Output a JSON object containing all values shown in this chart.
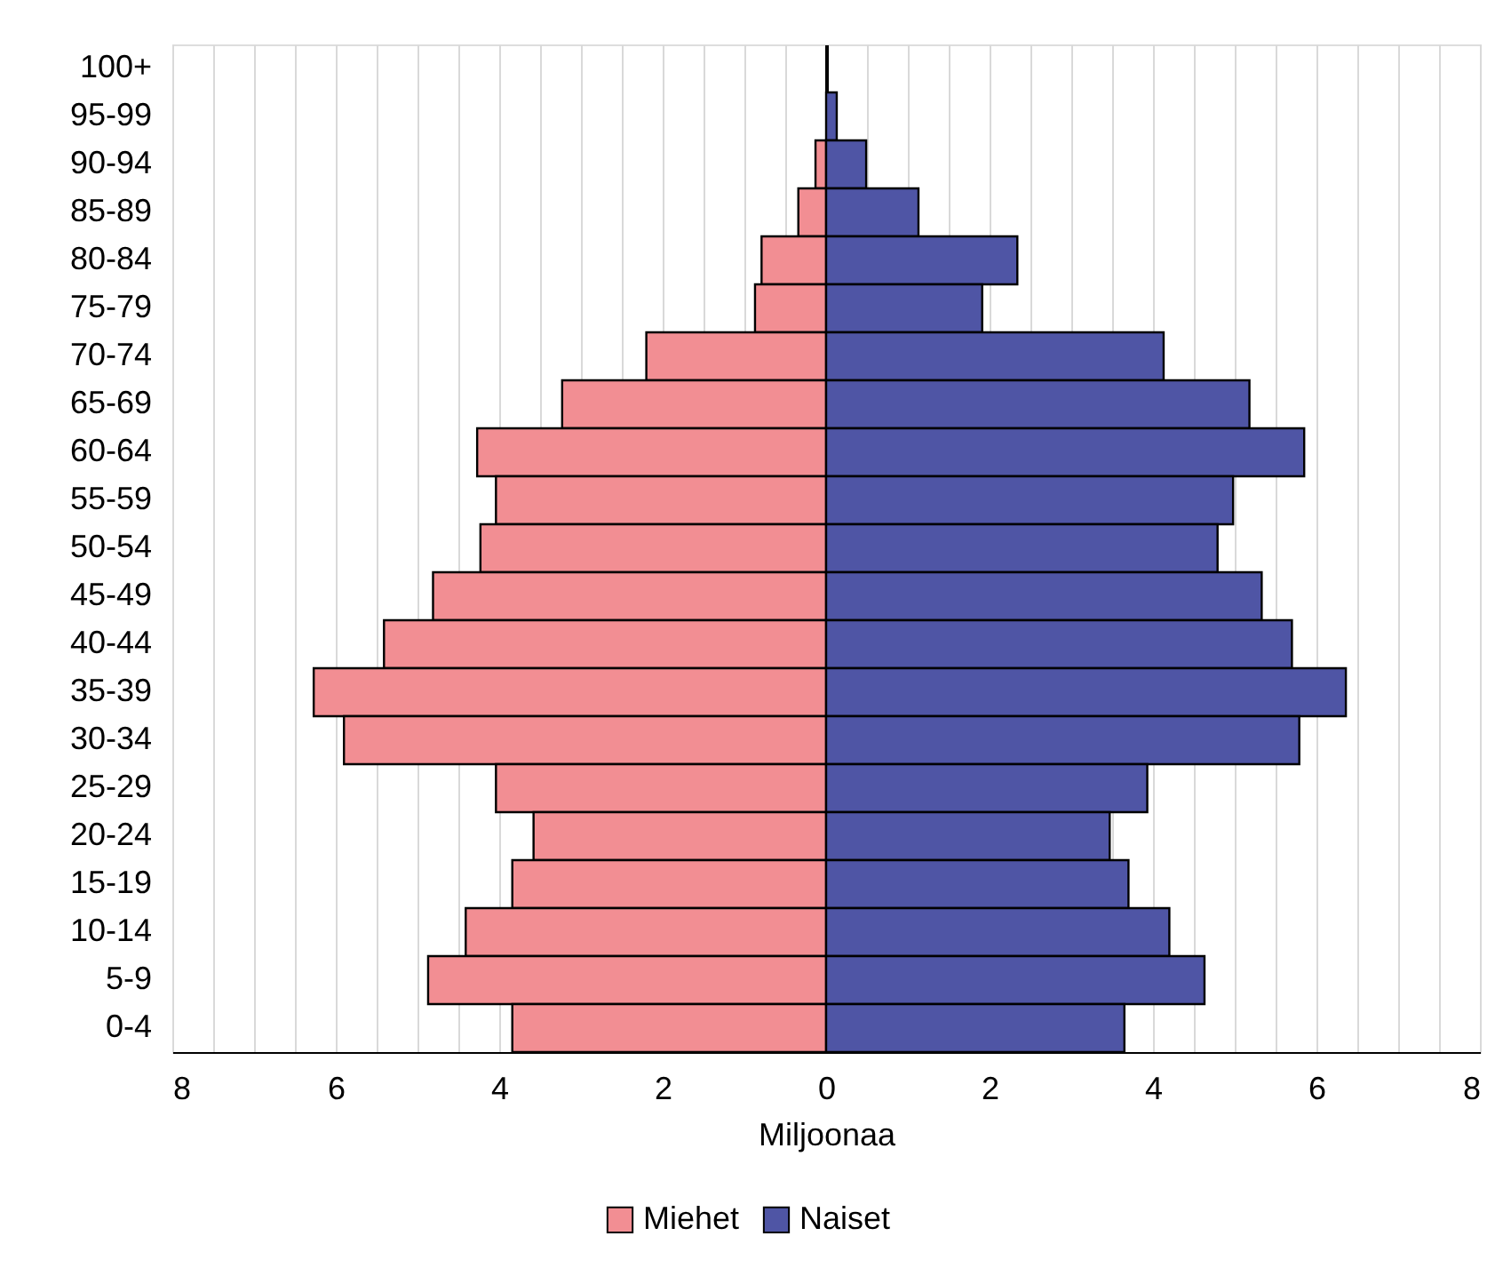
{
  "chart_data": {
    "type": "bar",
    "orientation": "horizontal",
    "xlabel": "Miljoonaa",
    "categories": [
      "100+",
      "95-99",
      "90-94",
      "85-89",
      "80-84",
      "75-79",
      "70-74",
      "65-69",
      "60-64",
      "55-59",
      "50-54",
      "45-49",
      "40-44",
      "35-39",
      "30-34",
      "25-29",
      "20-24",
      "15-19",
      "10-14",
      "5-9",
      "0-4"
    ],
    "series": [
      {
        "name": "Miehet",
        "color": "#f28e93",
        "values": [
          null,
          null,
          -0.13,
          -0.34,
          -0.79,
          -0.87,
          -2.2,
          -3.23,
          -4.27,
          -4.04,
          -4.23,
          -4.81,
          -5.41,
          -6.27,
          -5.9,
          -4.04,
          -3.58,
          -3.84,
          -4.41,
          -4.87,
          -3.84
        ]
      },
      {
        "name": "Naiset",
        "color": "#4f55a5",
        "values": [
          null,
          0.13,
          0.49,
          1.13,
          2.34,
          1.91,
          4.13,
          5.18,
          5.85,
          4.98,
          4.79,
          5.33,
          5.7,
          6.36,
          5.79,
          3.93,
          3.47,
          3.7,
          4.2,
          4.63,
          3.65
        ]
      }
    ],
    "xlim": [
      -8,
      8
    ],
    "xticks": [
      {
        "value": -8,
        "label": "8"
      },
      {
        "value": -7.5,
        "label": null
      },
      {
        "value": -7,
        "label": null
      },
      {
        "value": -6.5,
        "label": null
      },
      {
        "value": -6,
        "label": "6"
      },
      {
        "value": -5.5,
        "label": null
      },
      {
        "value": -5,
        "label": null
      },
      {
        "value": -4.5,
        "label": null
      },
      {
        "value": -4,
        "label": "4"
      },
      {
        "value": -3.5,
        "label": null
      },
      {
        "value": -3,
        "label": null
      },
      {
        "value": -2.5,
        "label": null
      },
      {
        "value": -2,
        "label": "2"
      },
      {
        "value": -1.5,
        "label": null
      },
      {
        "value": -1,
        "label": null
      },
      {
        "value": -0.5,
        "label": null
      },
      0,
      {
        "value": 0.5,
        "label": null
      },
      {
        "value": 1,
        "label": null
      },
      {
        "value": 1.5,
        "label": null
      },
      2,
      {
        "value": 2.5,
        "label": null
      },
      {
        "value": 3,
        "label": null
      },
      {
        "value": 3.5,
        "label": null
      },
      4,
      {
        "value": 4.5,
        "label": null
      },
      {
        "value": 5,
        "label": null
      },
      {
        "value": 5.5,
        "label": null
      },
      6,
      {
        "value": 6.5,
        "label": null
      },
      {
        "value": 7,
        "label": null
      },
      {
        "value": 7.5,
        "label": null
      },
      8
    ],
    "grid": "x",
    "legend": "bottom",
    "stacked": true
  }
}
